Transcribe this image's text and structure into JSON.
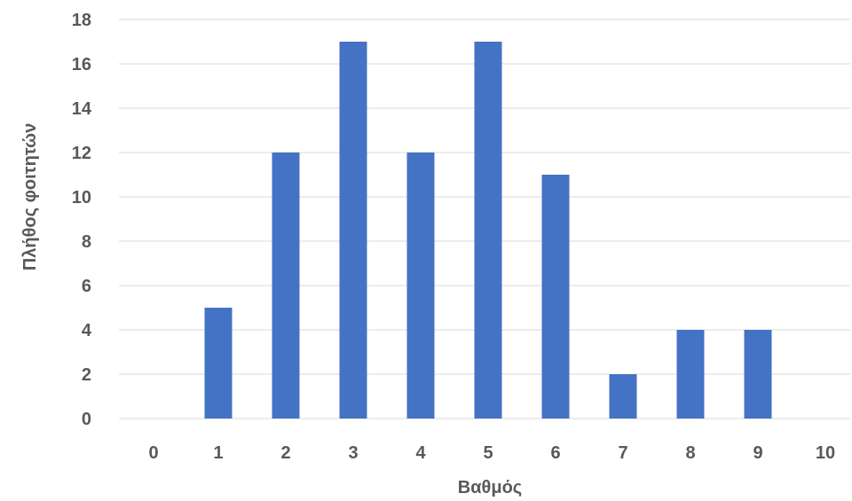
{
  "chart_data": {
    "type": "bar",
    "categories": [
      "0",
      "1",
      "2",
      "3",
      "4",
      "5",
      "6",
      "7",
      "8",
      "9",
      "10"
    ],
    "values": [
      0,
      5,
      12,
      17,
      12,
      17,
      11,
      2,
      4,
      4,
      0
    ],
    "xlabel": "Βαθμός",
    "ylabel": "Πλήθος φοιτητών",
    "ylim": [
      0,
      18
    ],
    "yticks": [
      0,
      2,
      4,
      6,
      8,
      10,
      12,
      14,
      16,
      18
    ],
    "grid": true,
    "bar_color": "#4472c4",
    "grid_color": "#d9d9d9",
    "text_color": "#595959"
  }
}
